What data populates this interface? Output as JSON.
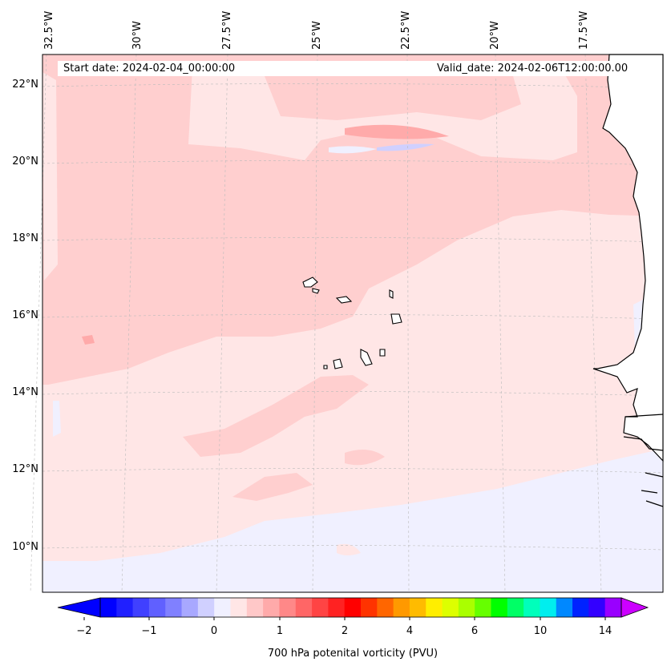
{
  "map": {
    "start_label": "Start date: 2024-02-04_00:00:00",
    "valid_label": "Valid_date: 2024-02-06T12:00:00.00",
    "lon_labels": [
      "32.5°W",
      "30°W",
      "27.5°W",
      "25°W",
      "22.5°W",
      "20°W",
      "17.5°W"
    ],
    "lat_labels": [
      "22°N",
      "20°N",
      "18°N",
      "16°N",
      "14°N",
      "12°N",
      "10°N"
    ],
    "land_color": "#ffffff",
    "gridline_color": "#bbbbbb"
  },
  "colorbar": {
    "title": "700 hPa potenital vorticity (PVU)",
    "tick_labels": [
      "−2",
      "−1",
      "0",
      "1",
      "2",
      "4",
      "6",
      "10",
      "14"
    ],
    "colors": [
      "#0000ff",
      "#2020ff",
      "#4040ff",
      "#6060ff",
      "#8080ff",
      "#a8a8ff",
      "#d0d0ff",
      "#f0f0ff",
      "#ffe6e6",
      "#ffc8c8",
      "#ffaaaa",
      "#ff8888",
      "#ff6666",
      "#ff4444",
      "#ff2222",
      "#ff0000",
      "#ff3300",
      "#ff6600",
      "#ff9900",
      "#ffbb00",
      "#ffee00",
      "#ddff00",
      "#aaff00",
      "#66ff00",
      "#00ff00",
      "#00ff66",
      "#00ffbb",
      "#00eeee",
      "#0088ff",
      "#0022ff",
      "#3300ff",
      "#9900ff"
    ],
    "under_color": "#0000ff",
    "over_color": "#cc00ff"
  }
}
